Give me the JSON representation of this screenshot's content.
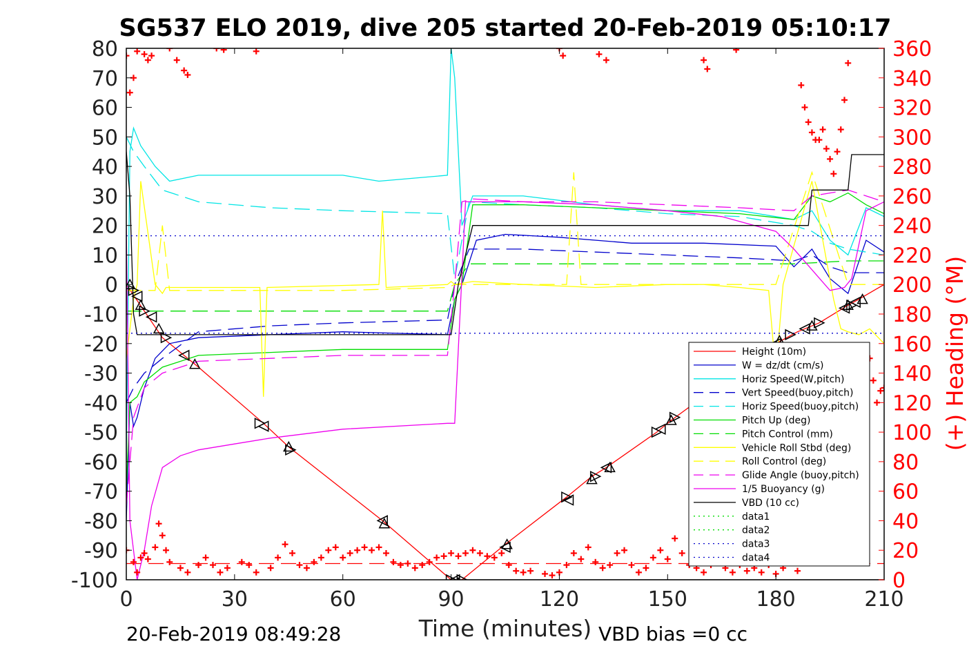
{
  "chart_data": {
    "type": "line",
    "title": "SG537 ELO 2019, dive 205 started 20-Feb-2019 05:10:17",
    "xlabel": "Time (minutes)",
    "ylabel": "",
    "y2label": "(+) Heading (°M)",
    "xlim": [
      0,
      210
    ],
    "ylim": [
      -100,
      80
    ],
    "y2lim": [
      0,
      360
    ],
    "xticks": [
      0,
      30,
      60,
      90,
      120,
      150,
      180,
      210
    ],
    "yticks": [
      -100,
      -90,
      -80,
      -70,
      -60,
      -50,
      -40,
      -30,
      -20,
      -10,
      0,
      10,
      20,
      30,
      40,
      50,
      60,
      70,
      80
    ],
    "y2ticks": [
      0,
      20,
      40,
      60,
      80,
      100,
      120,
      140,
      160,
      180,
      200,
      220,
      240,
      260,
      280,
      300,
      320,
      340,
      360
    ],
    "footer_left": "20-Feb-2019 08:49:28",
    "footer_right": "VBD bias =0 cc",
    "legend_position": "bottom-right",
    "colors": {
      "red": "#ff0000",
      "blue": "#0000cc",
      "cyan": "#00e5e5",
      "green": "#00dd00",
      "yellow": "#ffff00",
      "magenta": "#ee00ee",
      "black": "#000000"
    },
    "series": [
      {
        "name": "Height (10m)",
        "color": "#ff0000",
        "dash": "solid",
        "x": [
          0,
          10,
          20,
          38,
          45,
          71,
          90,
          93,
          105,
          122,
          129,
          133,
          147,
          151,
          180,
          186,
          192,
          200,
          203,
          210
        ],
        "y": [
          0,
          -18,
          -28,
          -47,
          -55,
          -80,
          -100,
          -100,
          -88,
          -72,
          -65,
          -62,
          -50,
          -46,
          -20,
          -16,
          -13,
          -7,
          -5,
          0
        ]
      },
      {
        "name": "W = dz/dt (cm/s)",
        "color": "#0000cc",
        "dash": "solid",
        "x": [
          0,
          1,
          2,
          3,
          5,
          8,
          12,
          20,
          40,
          60,
          89,
          91,
          93,
          97,
          105,
          120,
          140,
          160,
          180,
          185,
          190,
          195,
          200,
          205,
          210
        ],
        "y": [
          -80,
          -40,
          -48,
          -45,
          -35,
          -25,
          -20,
          -18,
          -17,
          -16,
          -17,
          -5,
          0,
          15,
          17,
          16,
          14,
          14,
          13,
          6,
          12,
          2,
          -3,
          15,
          11
        ]
      },
      {
        "name": "Horiz Speed(W,pitch)",
        "color": "#00e5e5",
        "dash": "solid",
        "x": [
          0,
          1,
          2,
          4,
          8,
          12,
          20,
          40,
          60,
          70,
          89,
          90,
          91,
          93,
          96,
          110,
          130,
          150,
          170,
          185,
          190,
          195,
          200,
          205,
          210
        ],
        "y": [
          -60,
          45,
          53,
          47,
          40,
          35,
          37,
          37,
          37,
          35,
          37,
          80,
          70,
          20,
          30,
          30,
          27,
          25,
          25,
          22,
          25,
          15,
          10,
          26,
          23
        ]
      },
      {
        "name": "Vert Speed(buoy,pitch)",
        "color": "#0000cc",
        "dash": "dashed",
        "x": [
          0,
          2,
          5,
          10,
          20,
          40,
          60,
          89,
          91,
          95,
          110,
          130,
          150,
          170,
          185,
          190,
          195,
          200,
          210
        ],
        "y": [
          -40,
          -35,
          -30,
          -25,
          -16,
          -14,
          -13,
          -12,
          0,
          12,
          12,
          11,
          10,
          9,
          8,
          10,
          6,
          4,
          4
        ]
      },
      {
        "name": "Horiz Speed(buoy,pitch)",
        "color": "#00e5e5",
        "dash": "dashed",
        "x": [
          0,
          2,
          5,
          10,
          20,
          40,
          60,
          89,
          91,
          95,
          110,
          130,
          150,
          170,
          185,
          190,
          195,
          200,
          210
        ],
        "y": [
          50,
          45,
          40,
          32,
          28,
          26,
          25,
          24,
          2,
          28,
          27,
          26,
          24,
          23,
          20,
          18,
          14,
          12,
          10
        ]
      },
      {
        "name": "Pitch Up (deg)",
        "color": "#00dd00",
        "dash": "solid",
        "x": [
          0,
          1,
          3,
          5,
          10,
          20,
          40,
          60,
          89,
          91,
          93,
          96,
          110,
          130,
          150,
          170,
          185,
          190,
          195,
          200,
          205,
          210
        ],
        "y": [
          -70,
          -40,
          -38,
          -33,
          -28,
          -24,
          -23,
          -22,
          -22,
          -5,
          0,
          27,
          27,
          26,
          25,
          24,
          22,
          30,
          28,
          31,
          27,
          24
        ]
      },
      {
        "name": "Pitch Control (mm)",
        "color": "#00dd00",
        "dash": "dashed",
        "x": [
          0,
          10,
          40,
          60,
          89,
          91,
          95,
          120,
          150,
          180,
          185,
          200,
          210
        ],
        "y": [
          -9,
          -9,
          -9,
          -9,
          -9,
          0,
          7,
          7,
          7,
          7,
          7,
          8,
          8
        ]
      },
      {
        "name": "Vehicle Roll Stbd (deg)",
        "color": "#ffff00",
        "dash": "solid",
        "x": [
          0,
          2,
          3,
          4,
          8,
          10,
          11,
          37,
          38,
          39,
          70,
          71,
          72,
          89,
          90,
          91,
          96,
          110,
          130,
          150,
          160,
          170,
          178,
          180,
          182,
          190,
          196,
          198,
          200,
          203,
          206,
          210
        ],
        "y": [
          -25,
          -5,
          0,
          35,
          0,
          -3,
          -1,
          -1,
          -38,
          -1,
          0,
          25,
          -1,
          0,
          1,
          0,
          1,
          0,
          -1,
          0,
          0,
          -1,
          -2,
          -30,
          0,
          35,
          -5,
          -15,
          -16,
          -17,
          -15,
          -20
        ]
      },
      {
        "name": "Roll Control (deg)",
        "color": "#ffff00",
        "dash": "dashed",
        "x": [
          0,
          8,
          10,
          12,
          30,
          38,
          40,
          60,
          89,
          91,
          122,
          124,
          126,
          130,
          160,
          170,
          180,
          190,
          200,
          210
        ],
        "y": [
          -2,
          -2,
          20,
          -2,
          -2,
          -2,
          -2,
          -2,
          -1,
          0,
          0,
          38,
          0,
          0,
          0,
          0,
          0,
          38,
          0,
          0
        ]
      },
      {
        "name": "Glide Angle (buoy,pitch)",
        "color": "#ee00ee",
        "dash": "dashed",
        "x": [
          0,
          2,
          5,
          10,
          20,
          40,
          60,
          89,
          91,
          93,
          96,
          110,
          130,
          150,
          170,
          185,
          190,
          195,
          200,
          205,
          210
        ],
        "y": [
          -75,
          -45,
          -35,
          -30,
          -26,
          -25,
          -24,
          -24,
          0,
          28,
          29,
          28,
          28,
          27,
          26,
          25,
          30,
          31,
          32,
          30,
          28
        ]
      },
      {
        "name": "1/5 Buoyancy (g)",
        "color": "#ee00ee",
        "dash": "solid",
        "x": [
          0,
          1,
          3,
          5,
          7,
          10,
          15,
          20,
          30,
          40,
          60,
          89,
          91,
          94,
          100,
          110,
          130,
          150,
          165,
          180,
          185,
          190,
          195,
          199,
          201,
          205,
          210
        ],
        "y": [
          20,
          -80,
          -100,
          -90,
          -75,
          -62,
          -58,
          -56,
          -54,
          -52,
          -49,
          -47,
          -47,
          28,
          28,
          28,
          27,
          25,
          23,
          18,
          12,
          5,
          -2,
          -1,
          2,
          25,
          28
        ]
      },
      {
        "name": "VBD (10 cc)",
        "color": "#000000",
        "dash": "solid",
        "x": [
          0,
          1,
          2,
          3,
          89,
          90,
          92,
          96,
          120,
          150,
          180,
          189,
          190,
          200,
          201,
          202,
          210
        ],
        "y": [
          45,
          30,
          -10,
          -17,
          -17,
          -17,
          0,
          20,
          20,
          20,
          20,
          20,
          32,
          32,
          44,
          44,
          44
        ]
      },
      {
        "name": "data1",
        "color": "#00dd00",
        "dash": "dotted",
        "x": [],
        "y": []
      },
      {
        "name": "data2",
        "color": "#00dd00",
        "dash": "dotted",
        "x": [],
        "y": []
      },
      {
        "name": "data3",
        "color": "#0000cc",
        "dash": "dotted",
        "x": [
          0,
          210
        ],
        "y": [
          16.5,
          16.5
        ]
      },
      {
        "name": "data4",
        "color": "#0000cc",
        "dash": "dotted",
        "x": [
          0,
          210
        ],
        "y": [
          -16.5,
          -16.5
        ]
      }
    ],
    "extra_lines": [
      {
        "color": "#ff0000",
        "dash": "dashed",
        "x": [
          0,
          210
        ],
        "y": [
          -94.5,
          -94.5
        ]
      },
      {
        "color": "#000000",
        "dash": "solid",
        "x": [
          90,
          210
        ],
        "y": [
          -100,
          -100
        ]
      }
    ],
    "heading_points": [
      [
        0,
        355
      ],
      [
        1,
        330
      ],
      [
        2,
        340
      ],
      [
        3,
        358
      ],
      [
        5,
        356
      ],
      [
        6,
        352
      ],
      [
        7,
        355
      ],
      [
        12,
        360
      ],
      [
        14,
        352
      ],
      [
        16,
        345
      ],
      [
        17,
        342
      ],
      [
        25,
        360
      ],
      [
        27,
        359
      ],
      [
        36,
        358
      ],
      [
        120,
        360
      ],
      [
        121,
        355
      ],
      [
        131,
        356
      ],
      [
        133,
        352
      ],
      [
        160,
        352
      ],
      [
        161,
        346
      ],
      [
        169,
        359
      ],
      [
        187,
        335
      ],
      [
        188,
        320
      ],
      [
        189,
        310
      ],
      [
        190,
        303
      ],
      [
        191,
        298
      ],
      [
        192,
        298
      ],
      [
        193,
        305
      ],
      [
        194,
        292
      ],
      [
        195,
        285
      ],
      [
        196,
        275
      ],
      [
        197,
        290
      ],
      [
        198,
        305
      ],
      [
        199,
        325
      ],
      [
        200,
        350
      ],
      [
        205,
        145
      ],
      [
        206,
        150
      ],
      [
        207,
        135
      ],
      [
        208,
        120
      ],
      [
        209,
        128
      ],
      [
        210,
        130
      ],
      [
        0,
        20
      ],
      [
        2,
        12
      ],
      [
        3,
        5
      ],
      [
        4,
        15
      ],
      [
        5,
        18
      ],
      [
        6,
        14
      ],
      [
        8,
        22
      ],
      [
        9,
        38
      ],
      [
        10,
        30
      ],
      [
        11,
        20
      ],
      [
        12,
        12
      ],
      [
        15,
        8
      ],
      [
        17,
        5
      ],
      [
        20,
        10
      ],
      [
        22,
        15
      ],
      [
        24,
        10
      ],
      [
        26,
        5
      ],
      [
        28,
        8
      ],
      [
        32,
        12
      ],
      [
        34,
        10
      ],
      [
        36,
        5
      ],
      [
        40,
        8
      ],
      [
        42,
        15
      ],
      [
        44,
        24
      ],
      [
        46,
        18
      ],
      [
        48,
        10
      ],
      [
        50,
        8
      ],
      [
        52,
        12
      ],
      [
        54,
        15
      ],
      [
        56,
        20
      ],
      [
        58,
        22
      ],
      [
        60,
        15
      ],
      [
        62,
        18
      ],
      [
        64,
        20
      ],
      [
        66,
        22
      ],
      [
        68,
        20
      ],
      [
        70,
        22
      ],
      [
        72,
        18
      ],
      [
        74,
        12
      ],
      [
        76,
        10
      ],
      [
        78,
        11
      ],
      [
        80,
        8
      ],
      [
        82,
        10
      ],
      [
        84,
        12
      ],
      [
        86,
        15
      ],
      [
        88,
        16
      ],
      [
        90,
        18
      ],
      [
        92,
        16
      ],
      [
        94,
        18
      ],
      [
        96,
        20
      ],
      [
        98,
        18
      ],
      [
        100,
        16
      ],
      [
        102,
        15
      ],
      [
        104,
        18
      ],
      [
        106,
        10
      ],
      [
        108,
        6
      ],
      [
        110,
        5
      ],
      [
        112,
        6
      ],
      [
        116,
        4
      ],
      [
        118,
        3
      ],
      [
        120,
        5
      ],
      [
        122,
        10
      ],
      [
        124,
        18
      ],
      [
        126,
        14
      ],
      [
        128,
        22
      ],
      [
        130,
        12
      ],
      [
        132,
        8
      ],
      [
        134,
        10
      ],
      [
        136,
        18
      ],
      [
        138,
        20
      ],
      [
        140,
        10
      ],
      [
        142,
        5
      ],
      [
        144,
        8
      ],
      [
        146,
        15
      ],
      [
        148,
        20
      ],
      [
        150,
        14
      ],
      [
        152,
        28
      ],
      [
        154,
        18
      ],
      [
        156,
        10
      ],
      [
        158,
        8
      ],
      [
        160,
        5
      ],
      [
        162,
        10
      ],
      [
        164,
        12
      ],
      [
        166,
        8
      ],
      [
        168,
        5
      ],
      [
        170,
        10
      ],
      [
        172,
        6
      ],
      [
        174,
        8
      ],
      [
        176,
        5
      ],
      [
        178,
        10
      ],
      [
        180,
        4
      ],
      [
        182,
        8
      ],
      [
        184,
        12
      ],
      [
        186,
        6
      ]
    ],
    "markers": [
      [
        1,
        0
      ],
      [
        2,
        -2
      ],
      [
        3,
        -4
      ],
      [
        4,
        -7
      ],
      [
        5,
        -9
      ],
      [
        7,
        -11
      ],
      [
        9,
        -15
      ],
      [
        11,
        -18
      ],
      [
        16,
        -24
      ],
      [
        19,
        -27
      ],
      [
        37,
        -47
      ],
      [
        38,
        -48
      ],
      [
        45,
        -55
      ],
      [
        45.5,
        -56
      ],
      [
        71,
        -80
      ],
      [
        71.5,
        -81
      ],
      [
        90,
        -100
      ],
      [
        91,
        -100
      ],
      [
        92,
        -101
      ],
      [
        93,
        -100
      ],
      [
        105,
        -89
      ],
      [
        105.5,
        -88
      ],
      [
        122,
        -72
      ],
      [
        122.5,
        -73
      ],
      [
        129,
        -66
      ],
      [
        130,
        -65
      ],
      [
        133,
        -62
      ],
      [
        134,
        -62
      ],
      [
        147,
        -50
      ],
      [
        148,
        -49
      ],
      [
        151,
        -46
      ],
      [
        152,
        -45
      ],
      [
        180,
        -20
      ],
      [
        181,
        -19
      ],
      [
        184,
        -17
      ],
      [
        188,
        -15
      ],
      [
        190,
        -14
      ],
      [
        192,
        -13
      ],
      [
        199,
        -8
      ],
      [
        200,
        -7
      ],
      [
        201,
        -7
      ],
      [
        202,
        -6
      ],
      [
        204,
        -5
      ]
    ],
    "legend": {
      "entries": [
        "Height (10m)",
        "W = dz/dt (cm/s)",
        "Horiz Speed(W,pitch)",
        "Vert Speed(buoy,pitch)",
        "Horiz Speed(buoy,pitch)",
        "Pitch Up (deg)",
        "Pitch Control (mm)",
        "Vehicle Roll Stbd (deg)",
        "Roll Control (deg)",
        "Glide Angle (buoy,pitch)",
        "1/5 Buoyancy (g)",
        "VBD (10 cc)",
        "data1",
        "data2",
        "data3",
        "data4"
      ]
    }
  }
}
